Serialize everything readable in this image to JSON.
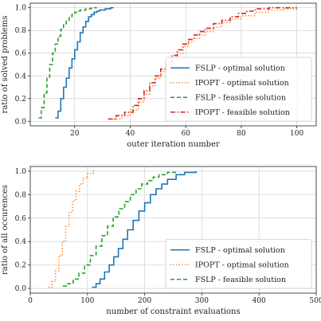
{
  "chart_data": [
    {
      "type": "line",
      "title": "",
      "xlabel": "outer iteration number",
      "ylabel": "ratio of solved problems",
      "xlim": [
        4,
        107
      ],
      "ylim": [
        -0.04,
        1.04
      ],
      "xticks": [
        20,
        40,
        60,
        80,
        100
      ],
      "yticks": [
        0.0,
        0.2,
        0.4,
        0.6,
        0.8,
        1.0
      ],
      "xtick_labels": [
        "20",
        "40",
        "60",
        "80",
        "100"
      ],
      "ytick_labels": [
        "0.0",
        "0.2",
        "0.4",
        "0.6",
        "0.8",
        "1.0"
      ],
      "grid": true,
      "legend_position": "lower-right",
      "step": true,
      "series": [
        {
          "name": "FSLP - optimal solution",
          "color": "#1f77b4",
          "dash": "solid",
          "x": [
            13,
            14,
            15,
            16,
            17,
            18,
            19,
            20,
            21,
            22,
            23,
            24,
            25,
            26,
            27,
            28,
            29,
            30,
            31,
            32,
            33,
            34
          ],
          "y": [
            0.03,
            0.09,
            0.2,
            0.3,
            0.38,
            0.47,
            0.55,
            0.63,
            0.7,
            0.78,
            0.83,
            0.88,
            0.92,
            0.94,
            0.96,
            0.97,
            0.98,
            0.98,
            0.99,
            0.99,
            1.0,
            1.0
          ]
        },
        {
          "name": "IPOPT - optimal solution",
          "color": "#ff7f0e",
          "dash": "dotted",
          "x": [
            34,
            37,
            40,
            43,
            45,
            47,
            49,
            51,
            53,
            55,
            57,
            59,
            61,
            63,
            65,
            67,
            70,
            73,
            76,
            80,
            85,
            90,
            95,
            100
          ],
          "y": [
            0.02,
            0.05,
            0.1,
            0.17,
            0.24,
            0.31,
            0.38,
            0.44,
            0.5,
            0.55,
            0.6,
            0.66,
            0.7,
            0.73,
            0.76,
            0.79,
            0.83,
            0.87,
            0.9,
            0.93,
            0.96,
            0.98,
            0.99,
            1.0
          ]
        },
        {
          "name": "FSLP - feasible solution",
          "color": "#2ca02c",
          "dash": "dashed",
          "x": [
            7,
            8,
            9,
            10,
            11,
            12,
            13,
            14,
            15,
            16,
            17,
            18,
            19,
            20,
            21,
            22,
            23,
            24,
            25,
            26,
            27,
            28
          ],
          "y": [
            0.03,
            0.12,
            0.25,
            0.39,
            0.5,
            0.6,
            0.68,
            0.75,
            0.81,
            0.86,
            0.89,
            0.92,
            0.94,
            0.96,
            0.97,
            0.98,
            0.98,
            0.99,
            0.99,
            1.0,
            1.0,
            1.0
          ]
        },
        {
          "name": "IPOPT - feasible solution",
          "color": "#d62728",
          "dash": "dashdot",
          "x": [
            32,
            35,
            38,
            41,
            43,
            45,
            47,
            49,
            51,
            53,
            55,
            57,
            59,
            61,
            63,
            65,
            67,
            70,
            73,
            76,
            79,
            82,
            85,
            90,
            100
          ],
          "y": [
            0.02,
            0.05,
            0.08,
            0.14,
            0.2,
            0.27,
            0.34,
            0.4,
            0.46,
            0.52,
            0.58,
            0.63,
            0.68,
            0.72,
            0.76,
            0.79,
            0.82,
            0.86,
            0.89,
            0.92,
            0.95,
            0.97,
            0.99,
            1.0,
            1.0
          ]
        }
      ]
    },
    {
      "type": "line",
      "title": "",
      "xlabel": "number of constraint evaluations",
      "ylabel": "ratio of all occurences",
      "xlim": [
        0,
        500
      ],
      "ylim": [
        -0.04,
        1.04
      ],
      "xticks": [
        0,
        100,
        200,
        300,
        400,
        500
      ],
      "yticks": [
        0.0,
        0.2,
        0.4,
        0.6,
        0.8,
        1.0
      ],
      "xtick_labels": [
        "0",
        "100",
        "200",
        "300",
        "400",
        "500"
      ],
      "ytick_labels": [
        "0.0",
        "0.2",
        "0.4",
        "0.6",
        "0.8",
        "1.0"
      ],
      "grid": true,
      "legend_position": "lower-right",
      "step": true,
      "series": [
        {
          "name": "FSLP - optimal solution",
          "color": "#1f77b4",
          "dash": "solid",
          "x": [
            108,
            115,
            122,
            130,
            138,
            146,
            154,
            162,
            170,
            180,
            190,
            200,
            210,
            220,
            230,
            240,
            255,
            270,
            290
          ],
          "y": [
            0.01,
            0.04,
            0.08,
            0.14,
            0.2,
            0.27,
            0.34,
            0.42,
            0.5,
            0.58,
            0.66,
            0.73,
            0.8,
            0.85,
            0.89,
            0.93,
            0.97,
            0.99,
            1.0
          ]
        },
        {
          "name": "IPOPT - optimal solution",
          "color": "#ff7f0e",
          "dash": "dotted",
          "x": [
            32,
            38,
            44,
            50,
            56,
            62,
            68,
            74,
            80,
            86,
            92,
            100,
            110,
            115
          ],
          "y": [
            0.01,
            0.06,
            0.15,
            0.28,
            0.4,
            0.53,
            0.65,
            0.75,
            0.83,
            0.89,
            0.94,
            0.98,
            1.0,
            1.0
          ]
        },
        {
          "name": "FSLP - feasible solution",
          "color": "#2ca02c",
          "dash": "dashed",
          "x": [
            57,
            65,
            75,
            85,
            95,
            105,
            115,
            125,
            135,
            145,
            155,
            165,
            175,
            185,
            195,
            205,
            215,
            225,
            240,
            255
          ],
          "y": [
            0.02,
            0.04,
            0.08,
            0.13,
            0.2,
            0.28,
            0.36,
            0.45,
            0.53,
            0.61,
            0.68,
            0.74,
            0.8,
            0.85,
            0.89,
            0.92,
            0.95,
            0.97,
            0.99,
            1.0
          ]
        }
      ]
    }
  ]
}
